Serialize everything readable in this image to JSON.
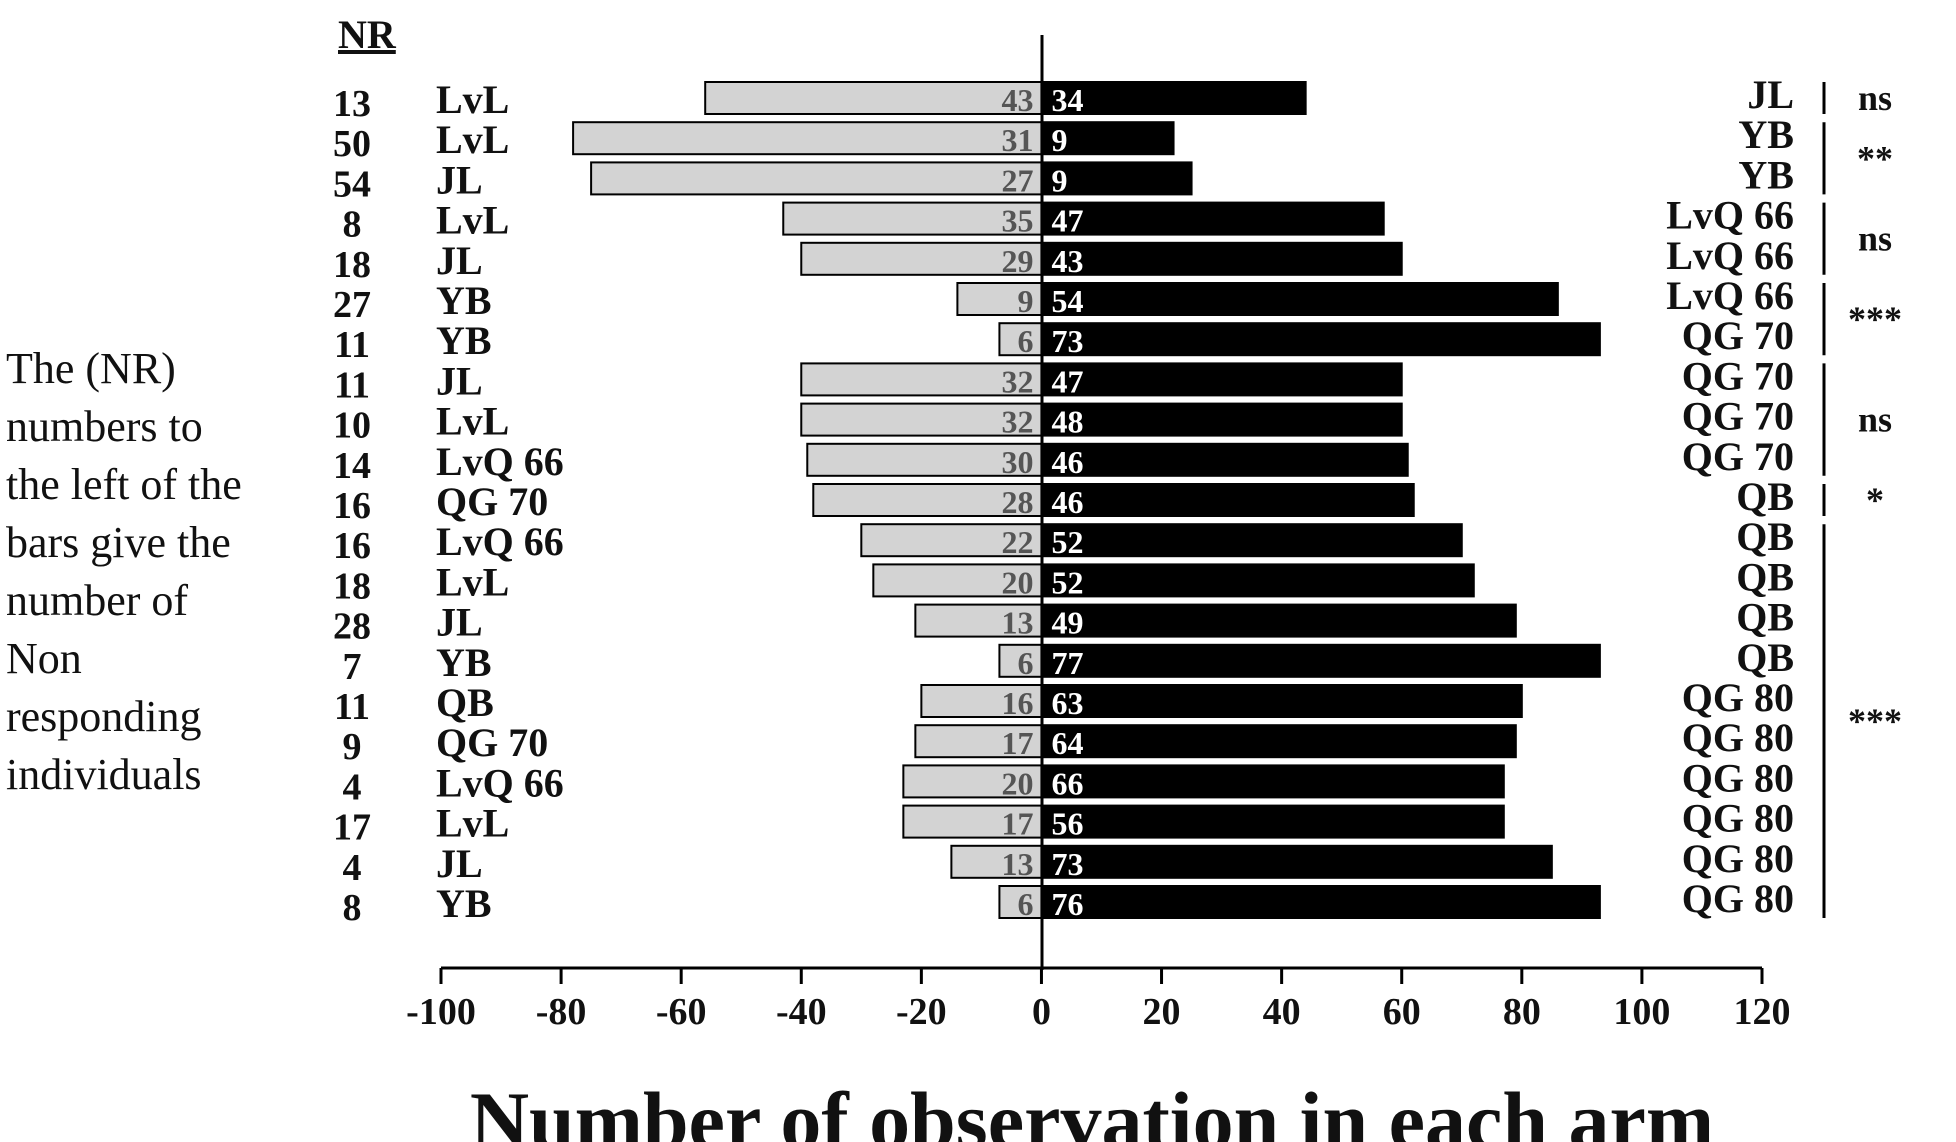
{
  "side_note": {
    "lines": [
      "The (NR)",
      "numbers to",
      "the left of the",
      "bars  give the",
      "number of",
      "Non",
      "responding",
      "individuals"
    ]
  },
  "chart_data": {
    "type": "bar",
    "orientation": "horizontal",
    "nr_header": "NR",
    "xlabel": "Number of observation in each arm",
    "xlim": [
      -100,
      120
    ],
    "xticks": [
      -100,
      -80,
      -60,
      -40,
      -20,
      0,
      20,
      40,
      60,
      80,
      100,
      120
    ],
    "grid": false,
    "colors": {
      "left_bar": "#d3d3d3",
      "right_bar": "#000000",
      "right_label": "#ffffff",
      "text": "#111111"
    },
    "rows": [
      {
        "nr": "13",
        "left_treatment": "LvL",
        "right_treatment": "JL",
        "left_value": -56,
        "right_value": 44,
        "left_label": "43",
        "right_label": "34"
      },
      {
        "nr": "50",
        "left_treatment": "LvL",
        "right_treatment": "YB",
        "left_value": -78,
        "right_value": 22,
        "left_label": "31",
        "right_label": "9"
      },
      {
        "nr": "54",
        "left_treatment": "JL",
        "right_treatment": "YB",
        "left_value": -75,
        "right_value": 25,
        "left_label": "27",
        "right_label": "9"
      },
      {
        "nr": "8",
        "left_treatment": "LvL",
        "right_treatment": "LvQ 66",
        "left_value": -43,
        "right_value": 57,
        "left_label": "35",
        "right_label": "47"
      },
      {
        "nr": "18",
        "left_treatment": "JL",
        "right_treatment": "LvQ 66",
        "left_value": -40,
        "right_value": 60,
        "left_label": "29",
        "right_label": "43"
      },
      {
        "nr": "27",
        "left_treatment": "YB",
        "right_treatment": "LvQ 66",
        "left_value": -14,
        "right_value": 86,
        "left_label": "9",
        "right_label": "54"
      },
      {
        "nr": "11",
        "left_treatment": "YB",
        "right_treatment": "QG 70",
        "left_value": -7,
        "right_value": 93,
        "left_label": "6",
        "right_label": "73"
      },
      {
        "nr": "11",
        "left_treatment": "JL",
        "right_treatment": "QG 70",
        "left_value": -40,
        "right_value": 60,
        "left_label": "32",
        "right_label": "47"
      },
      {
        "nr": "10",
        "left_treatment": "LvL",
        "right_treatment": "QG 70",
        "left_value": -40,
        "right_value": 60,
        "left_label": "32",
        "right_label": "48"
      },
      {
        "nr": "14",
        "left_treatment": "LvQ 66",
        "right_treatment": "QG 70",
        "left_value": -39,
        "right_value": 61,
        "left_label": "30",
        "right_label": "46"
      },
      {
        "nr": "16",
        "left_treatment": "QG 70",
        "right_treatment": "QB",
        "left_value": -38,
        "right_value": 62,
        "left_label": "28",
        "right_label": "46"
      },
      {
        "nr": "16",
        "left_treatment": "LvQ 66",
        "right_treatment": "QB",
        "left_value": -30,
        "right_value": 70,
        "left_label": "22",
        "right_label": "52"
      },
      {
        "nr": "18",
        "left_treatment": "LvL",
        "right_treatment": "QB",
        "left_value": -28,
        "right_value": 72,
        "left_label": "20",
        "right_label": "52"
      },
      {
        "nr": "28",
        "left_treatment": "JL",
        "right_treatment": "QB",
        "left_value": -21,
        "right_value": 79,
        "left_label": "13",
        "right_label": "49"
      },
      {
        "nr": "7",
        "left_treatment": "YB",
        "right_treatment": "QB",
        "left_value": -7,
        "right_value": 93,
        "left_label": "6",
        "right_label": "77"
      },
      {
        "nr": "11",
        "left_treatment": "QB",
        "right_treatment": "QG 80",
        "left_value": -20,
        "right_value": 80,
        "left_label": "16",
        "right_label": "63"
      },
      {
        "nr": "9",
        "left_treatment": "QG 70",
        "right_treatment": "QG 80",
        "left_value": -21,
        "right_value": 79,
        "left_label": "17",
        "right_label": "64"
      },
      {
        "nr": "4",
        "left_treatment": "LvQ 66",
        "right_treatment": "QG 80",
        "left_value": -23,
        "right_value": 77,
        "left_label": "20",
        "right_label": "66"
      },
      {
        "nr": "17",
        "left_treatment": "LvL",
        "right_treatment": "QG 80",
        "left_value": -23,
        "right_value": 77,
        "left_label": "17",
        "right_label": "56"
      },
      {
        "nr": "4",
        "left_treatment": "JL",
        "right_treatment": "QG 80",
        "left_value": -15,
        "right_value": 85,
        "left_label": "13",
        "right_label": "73"
      },
      {
        "nr": "8",
        "left_treatment": "YB",
        "right_treatment": "QG 80",
        "left_value": -7,
        "right_value": 93,
        "left_label": "6",
        "right_label": "76"
      }
    ],
    "significance_groups": [
      {
        "first_row": 0,
        "last_row": 0,
        "label": "ns"
      },
      {
        "first_row": 1,
        "last_row": 2,
        "label": "**"
      },
      {
        "first_row": 3,
        "last_row": 4,
        "label": "ns"
      },
      {
        "first_row": 5,
        "last_row": 6,
        "label": "***"
      },
      {
        "first_row": 7,
        "last_row": 9,
        "label": "ns"
      },
      {
        "first_row": 10,
        "last_row": 10,
        "label": "*"
      },
      {
        "first_row": 11,
        "last_row": 20,
        "label": "***"
      }
    ]
  }
}
